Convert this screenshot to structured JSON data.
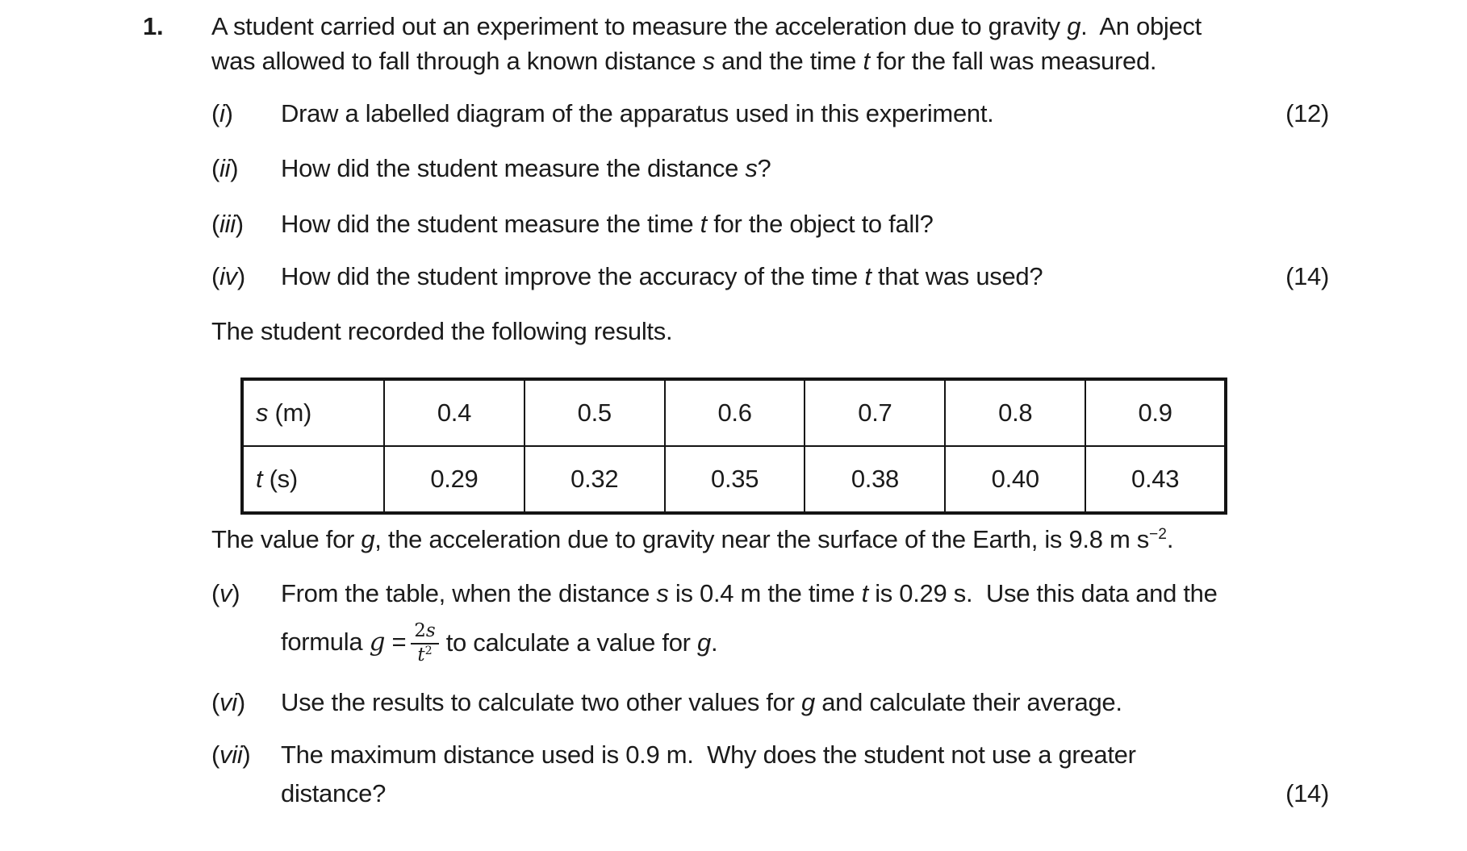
{
  "colors": {
    "background": "#ffffff",
    "text": "#1b1b1b",
    "table_border": "#141414"
  },
  "question": {
    "number": "1.",
    "intro_lines": [
      [
        {
          "t": "A student carried out an experiment to measure the acceleration due to gravity "
        },
        {
          "t": "g",
          "i": true
        },
        {
          "t": ".  An object"
        }
      ],
      [
        {
          "t": "was allowed to fall through a known distance "
        },
        {
          "t": "s",
          "i": true
        },
        {
          "t": " and the time "
        },
        {
          "t": "t",
          "i": true
        },
        {
          "t": " for the fall was measured."
        }
      ]
    ],
    "parts": [
      {
        "label": [
          {
            "t": "("
          },
          {
            "t": "i",
            "i": true
          },
          {
            "t": ")"
          }
        ],
        "lines": [
          [
            {
              "t": "Draw a labelled diagram of the apparatus used in this experiment."
            }
          ]
        ],
        "marks": "(12)"
      },
      {
        "label": [
          {
            "t": "("
          },
          {
            "t": "ii",
            "i": true
          },
          {
            "t": ")"
          }
        ],
        "lines": [
          [
            {
              "t": "How did the student measure the distance "
            },
            {
              "t": "s",
              "i": true
            },
            {
              "t": "?"
            }
          ]
        ]
      },
      {
        "label": [
          {
            "t": "("
          },
          {
            "t": "iii",
            "i": true
          },
          {
            "t": ")"
          }
        ],
        "lines": [
          [
            {
              "t": "How did the student measure the time "
            },
            {
              "t": "t",
              "i": true
            },
            {
              "t": " for the object to fall?"
            }
          ]
        ]
      },
      {
        "label": [
          {
            "t": "("
          },
          {
            "t": "iv",
            "i": true
          },
          {
            "t": ")"
          }
        ],
        "lines": [
          [
            {
              "t": "How did the student improve the accuracy of the time "
            },
            {
              "t": "t",
              "i": true
            },
            {
              "t": " that was used?"
            }
          ]
        ],
        "marks": "(14)"
      },
      {
        "label": [
          {
            "t": "("
          },
          {
            "t": "v",
            "i": true
          },
          {
            "t": ")"
          }
        ],
        "lines": [
          [
            {
              "t": "From the table, when the distance "
            },
            {
              "t": "s",
              "i": true
            },
            {
              "t": " is 0.4 m the time "
            },
            {
              "t": "t",
              "i": true
            },
            {
              "t": " is 0.29 s.  Use this data and the"
            }
          ]
        ],
        "formula": {
          "prefix": [
            {
              "t": "formula "
            },
            {
              "t": "g",
              "i": true,
              "m": true
            },
            {
              "t": " = "
            }
          ],
          "numerator": [
            {
              "t": "2"
            },
            {
              "t": "s",
              "i": true
            }
          ],
          "denominator": [
            {
              "t": "t",
              "i": true
            },
            {
              "t": "2",
              "sup": true
            }
          ],
          "suffix": [
            {
              "t": "to calculate a value for "
            },
            {
              "t": "g",
              "i": true
            },
            {
              "t": "."
            }
          ]
        }
      },
      {
        "label": [
          {
            "t": "("
          },
          {
            "t": "vi",
            "i": true
          },
          {
            "t": ")"
          }
        ],
        "lines": [
          [
            {
              "t": "Use the results to calculate two other values for "
            },
            {
              "t": "g",
              "i": true
            },
            {
              "t": " and calculate their average."
            }
          ]
        ]
      },
      {
        "label": [
          {
            "t": "("
          },
          {
            "t": "vii",
            "i": true
          },
          {
            "t": ")"
          }
        ],
        "lines": [
          [
            {
              "t": "The maximum distance used is 0.9 m.  Why does the student not use a greater"
            }
          ],
          [
            {
              "t": "distance?"
            }
          ]
        ],
        "marks": "(14)"
      }
    ],
    "results_intro": [
      {
        "t": "The student recorded the following results."
      }
    ],
    "g_statement": [
      {
        "t": "The value for "
      },
      {
        "t": "g",
        "i": true
      },
      {
        "t": ", the acceleration due to gravity near the surface of the Earth, is 9.8 m s"
      },
      {
        "t": "−2",
        "sup": true
      },
      {
        "t": "."
      }
    ]
  },
  "table": {
    "rows": [
      {
        "header": [
          {
            "t": "s",
            "i": true
          },
          {
            "t": " (m)"
          }
        ],
        "values": [
          "0.4",
          "0.5",
          "0.6",
          "0.7",
          "0.8",
          "0.9"
        ]
      },
      {
        "header": [
          {
            "t": "t",
            "i": true
          },
          {
            "t": " (s)"
          }
        ],
        "values": [
          "0.29",
          "0.32",
          "0.35",
          "0.38",
          "0.40",
          "0.43"
        ]
      }
    ]
  }
}
